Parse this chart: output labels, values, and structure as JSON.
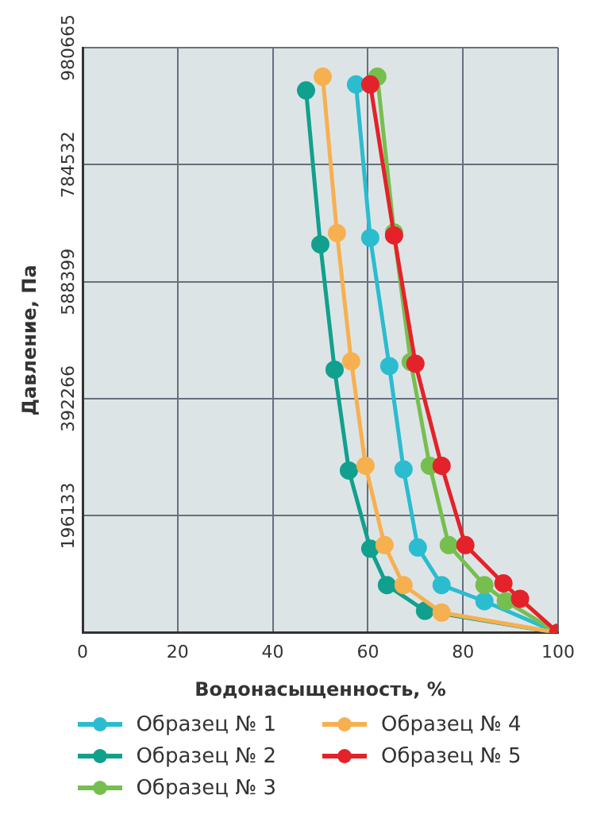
{
  "chart_data": {
    "type": "line",
    "xlabel": "Водонасыщенность, %",
    "ylabel": "Давление, Па",
    "xlim": [
      0,
      100
    ],
    "xticks": [
      0,
      20,
      40,
      60,
      80,
      100
    ],
    "ylim": [
      0,
      980665
    ],
    "yticks": [
      196133,
      392266,
      588399,
      784532,
      980665
    ],
    "grid": true,
    "legend": "bottom",
    "marker": "circle",
    "line_style": "solid",
    "series": [
      {
        "name": "Образец № 1",
        "color": "#2bbcd0",
        "x": [
          57.5,
          60.5,
          64.5,
          67.5,
          70.5,
          75.5,
          84.5,
          100
        ],
        "values": [
          919000,
          662000,
          447000,
          274000,
          143000,
          80000,
          53000,
          0
        ]
      },
      {
        "name": "Образец № 2",
        "color": "#11a08e",
        "x": [
          47,
          50,
          53,
          56,
          60.5,
          64,
          72,
          100
        ],
        "values": [
          909000,
          651000,
          441000,
          272000,
          141000,
          80000,
          37000,
          0
        ]
      },
      {
        "name": "Образец № 3",
        "color": "#76bf4f",
        "x": [
          62,
          65.5,
          69,
          73,
          77,
          84.5,
          89,
          100
        ],
        "values": [
          932000,
          671000,
          454000,
          280000,
          147000,
          80000,
          53000,
          0
        ]
      },
      {
        "name": "Образец № 4",
        "color": "#f7b04f",
        "x": [
          50.5,
          53.5,
          56.5,
          59.5,
          63.5,
          67.5,
          75.5,
          100
        ],
        "values": [
          932000,
          670000,
          455000,
          280000,
          147000,
          80000,
          34000,
          0
        ]
      },
      {
        "name": "Образец № 5",
        "color": "#e42229",
        "x": [
          60.5,
          65.5,
          70,
          75.5,
          80.5,
          88.5,
          92,
          100
        ],
        "values": [
          919000,
          666000,
          451000,
          280000,
          147000,
          83000,
          57000,
          0
        ]
      }
    ]
  }
}
